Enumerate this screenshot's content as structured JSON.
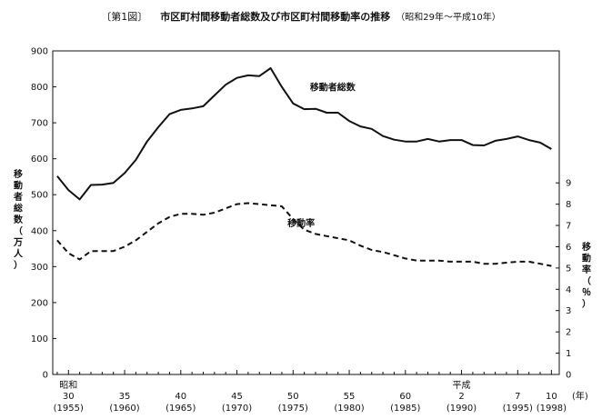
{
  "figure": {
    "number": "〔第1図〕",
    "title": "市区町村間移動者総数及び市区町村間移動率の推移",
    "period": "（昭和29年～平成10年）"
  },
  "chart_data": {
    "type": "line",
    "x": [
      1954,
      1955,
      1956,
      1957,
      1958,
      1959,
      1960,
      1961,
      1962,
      1963,
      1964,
      1965,
      1966,
      1967,
      1968,
      1969,
      1970,
      1971,
      1972,
      1973,
      1974,
      1975,
      1976,
      1977,
      1978,
      1979,
      1980,
      1981,
      1982,
      1983,
      1984,
      1985,
      1986,
      1987,
      1988,
      1989,
      1990,
      1991,
      1992,
      1993,
      1994,
      1995,
      1996,
      1997,
      1998
    ],
    "series": [
      {
        "name": "移動者総数",
        "axis": "left",
        "style": "solid",
        "values": [
          552,
          513,
          487,
          527,
          528,
          533,
          560,
          597,
          648,
          688,
          724,
          736,
          740,
          746,
          776,
          806,
          825,
          832,
          830,
          852,
          800,
          754,
          738,
          739,
          728,
          728,
          705,
          690,
          683,
          663,
          653,
          648,
          648,
          655,
          648,
          652,
          652,
          638,
          637,
          650,
          655,
          662,
          652,
          645,
          627
        ]
      },
      {
        "name": "移動率",
        "axis": "right",
        "style": "dashed",
        "values": [
          6.3,
          5.7,
          5.4,
          5.8,
          5.8,
          5.8,
          6.0,
          6.3,
          6.7,
          7.1,
          7.4,
          7.55,
          7.55,
          7.5,
          7.6,
          7.8,
          8.0,
          8.05,
          8.0,
          7.95,
          7.9,
          7.3,
          6.8,
          6.6,
          6.5,
          6.4,
          6.3,
          6.05,
          5.85,
          5.75,
          5.6,
          5.45,
          5.35,
          5.35,
          5.35,
          5.3,
          5.3,
          5.3,
          5.2,
          5.2,
          5.25,
          5.3,
          5.3,
          5.2,
          5.1
        ]
      }
    ],
    "y_left": {
      "label": "移動者総数（万人）",
      "ticks": [
        "0",
        "100",
        "200",
        "300",
        "400",
        "500",
        "600",
        "700",
        "800",
        "900"
      ],
      "min": 0,
      "max": 900
    },
    "y_right": {
      "label": "移動率（％）",
      "ticks": [
        "0",
        "1",
        "2",
        "3",
        "4",
        "5",
        "6",
        "7",
        "8",
        "9"
      ],
      "min": 0,
      "max": 15.2
    },
    "x_labels": [
      {
        "year": 1955,
        "lines": [
          "昭和",
          "30",
          "(1955)"
        ]
      },
      {
        "year": 1960,
        "lines": [
          "",
          "35",
          "(1960)"
        ]
      },
      {
        "year": 1965,
        "lines": [
          "",
          "40",
          "(1965)"
        ]
      },
      {
        "year": 1970,
        "lines": [
          "",
          "45",
          "(1970)"
        ]
      },
      {
        "year": 1975,
        "lines": [
          "",
          "50",
          "(1975)"
        ]
      },
      {
        "year": 1980,
        "lines": [
          "",
          "55",
          "(1980)"
        ]
      },
      {
        "year": 1985,
        "lines": [
          "",
          "60",
          "(1985)"
        ]
      },
      {
        "year": 1990,
        "lines": [
          "平成",
          "2",
          "(1990)"
        ]
      },
      {
        "year": 1995,
        "lines": [
          "",
          "7",
          "(1995)"
        ]
      },
      {
        "year": 1998,
        "lines": [
          "",
          "10",
          "(1998)"
        ]
      }
    ],
    "x_unit": "(年)",
    "grid": false,
    "legend": "inline labels next to lines"
  }
}
